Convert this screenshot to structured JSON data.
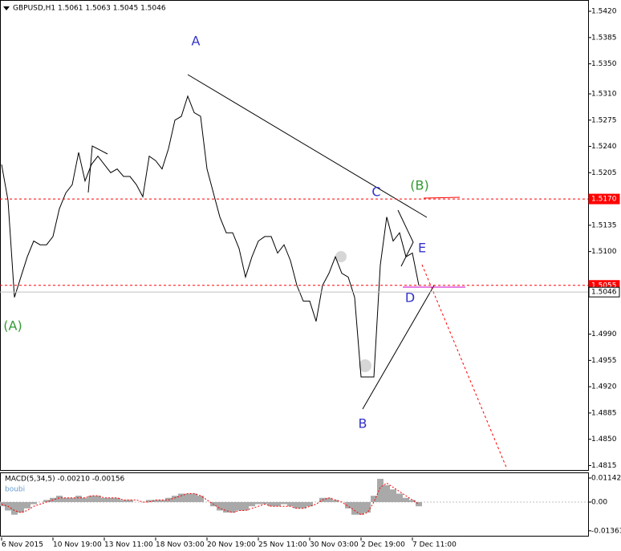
{
  "chart_data": [
    {
      "type": "line",
      "title": "GBPUSD,H1  1.5061 1.5063 1.5045 1.5046",
      "categories": [
        "6 Nov 2015",
        null,
        null,
        null,
        null,
        null,
        null,
        null,
        "10 Nov 19:00",
        null,
        null,
        null,
        null,
        null,
        null,
        null,
        "13 Nov 11:00",
        null,
        null,
        null,
        null,
        null,
        null,
        null,
        "18 Nov 03:00",
        null,
        null,
        null,
        null,
        null,
        null,
        null,
        "20 Nov 19:00",
        null,
        null,
        null,
        null,
        null,
        null,
        null,
        "25 Nov 11:00",
        null,
        null,
        null,
        null,
        null,
        null,
        null,
        "30 Nov 03:00",
        null,
        null,
        null,
        null,
        null,
        null,
        null,
        "2 Dec 19:00",
        null,
        null,
        null,
        null,
        null,
        null,
        null,
        "7 Dec 11:00",
        null,
        null,
        null,
        null,
        null,
        null,
        null,
        null,
        null,
        null,
        null,
        null,
        null,
        null,
        null,
        null,
        null,
        null,
        null,
        null,
        null,
        null,
        null,
        null,
        null,
        null,
        null
      ],
      "series": [
        {
          "name": "GBPUSD",
          "color": "#000000",
          "values": [
            1.5216,
            1.5168,
            1.5039,
            1.5066,
            1.5093,
            1.5114,
            1.5109,
            1.5109,
            1.512,
            1.5157,
            1.5178,
            1.5189,
            1.5232,
            1.5194,
            1.5216,
            1.5227,
            1.5216,
            1.5205,
            1.521,
            1.52,
            1.52,
            1.5189,
            1.5173,
            1.5227,
            1.5221,
            1.521,
            1.5237,
            1.5275,
            1.528,
            1.5307,
            1.5285,
            1.528,
            1.521,
            1.5178,
            1.5146,
            1.5125,
            1.5125,
            1.5104,
            1.5066,
            1.5093,
            1.5114,
            1.512,
            1.512,
            1.5098,
            1.5109,
            1.5088,
            1.5055,
            1.5034,
            1.5034,
            1.5007,
            1.5055,
            1.5071,
            1.5093,
            1.5071,
            1.5066,
            1.5039,
            1.4933,
            1.4933,
            1.4933,
            1.5082,
            1.5146,
            1.5114,
            1.5125,
            1.5093,
            1.5098,
            1.5055,
            null,
            null,
            null,
            null,
            null,
            null,
            null,
            null,
            null,
            null,
            null,
            null,
            null,
            null,
            null,
            null,
            null,
            null,
            null,
            null,
            null,
            null,
            null,
            null,
            null,
            null
          ]
        }
      ],
      "ylim": [
        1.4808,
        1.5435
      ],
      "yticks": [
        {
          "value": 1.542,
          "label": "1.5420"
        },
        {
          "value": 1.5385,
          "label": "1.5385"
        },
        {
          "value": 1.535,
          "label": "1.5350"
        },
        {
          "value": 1.531,
          "label": "1.5310"
        },
        {
          "value": 1.5275,
          "label": "1.5275"
        },
        {
          "value": 1.524,
          "label": "1.5240"
        },
        {
          "value": 1.5205,
          "label": "1.5205"
        },
        {
          "value": 1.5135,
          "label": "1.5135"
        },
        {
          "value": 1.51,
          "label": "1.5100"
        },
        {
          "value": 1.499,
          "label": "1.4990"
        },
        {
          "value": 1.4955,
          "label": "1.4955"
        },
        {
          "value": 1.492,
          "label": "1.4920"
        },
        {
          "value": 1.4885,
          "label": "1.4885"
        },
        {
          "value": 1.485,
          "label": "1.4850"
        },
        {
          "value": 1.4815,
          "label": "1.4815"
        }
      ],
      "levels": [
        {
          "value": 1.517,
          "label": "1.5170",
          "color": "#ff0000"
        },
        {
          "value": 1.5055,
          "label": "1.5055",
          "color": "#ff0000"
        },
        {
          "value": 1.5046,
          "label": "1.5046",
          "color": "#c0c0c0"
        }
      ],
      "annotations": [
        "A",
        "B",
        "C",
        "D",
        "E",
        "(A)",
        "(B)"
      ]
    },
    {
      "type": "macd",
      "title": "MACD(5,34,5) -0.00210 -0.00156",
      "subtitle": "boubi",
      "series": [
        {
          "name": "MACD",
          "color": "#a9a9a9",
          "values": [
            -0.002,
            -0.004,
            -0.006,
            -0.005,
            -0.003,
            -0.001,
            0,
            0.001,
            0.002,
            0.003,
            0.002,
            0.002,
            0.003,
            0.002,
            0.003,
            0.003,
            0.002,
            0.002,
            0.002,
            0.001,
            0.001,
            0,
            0,
            0.001,
            0.001,
            0.001,
            0.002,
            0.003,
            0.004,
            0.004,
            0.004,
            0.003,
            0,
            -0.002,
            -0.004,
            -0.005,
            -0.005,
            -0.004,
            -0.004,
            -0.002,
            -0.001,
            -0.001,
            -0.002,
            -0.002,
            -0.001,
            -0.002,
            -0.003,
            -0.003,
            -0.002,
            0,
            0.002,
            0.002,
            0.001,
            0,
            -0.003,
            -0.006,
            -0.006,
            -0.005,
            0.003,
            0.011,
            0.008,
            0.006,
            0.004,
            0.002,
            0.001,
            -0.002,
            null,
            null,
            null,
            null,
            null,
            null,
            null,
            null,
            null,
            null,
            null,
            null,
            null,
            null,
            null,
            null,
            null,
            null,
            null,
            null,
            null,
            null,
            null,
            null,
            null,
            null
          ]
        },
        {
          "name": "Signal",
          "color": "#ff0000",
          "values": [
            -0.001,
            -0.002,
            -0.004,
            -0.005,
            -0.004,
            -0.002,
            -0.001,
            0,
            0.001,
            0.002,
            0.002,
            0.002,
            0.002,
            0.002,
            0.003,
            0.003,
            0.002,
            0.002,
            0.002,
            0.001,
            0.001,
            0.001,
            0,
            0,
            0.001,
            0.001,
            0.001,
            0.002,
            0.003,
            0.004,
            0.004,
            0.003,
            0.001,
            -0.001,
            -0.003,
            -0.004,
            -0.005,
            -0.004,
            -0.004,
            -0.003,
            -0.002,
            -0.001,
            -0.002,
            -0.002,
            -0.002,
            -0.002,
            -0.003,
            -0.003,
            -0.002,
            -0.001,
            0.001,
            0.002,
            0.001,
            0,
            -0.002,
            -0.004,
            -0.006,
            -0.005,
            0,
            0.007,
            0.009,
            0.007,
            0.005,
            0.003,
            0.001,
            -0.001,
            null,
            null,
            null,
            null,
            null,
            null,
            null,
            null,
            null,
            null,
            null,
            null,
            null,
            null,
            null,
            null,
            null,
            null,
            null,
            null,
            null,
            null,
            null,
            null,
            null,
            null
          ]
        }
      ],
      "ylim": [
        -0.01675,
        0.0137
      ],
      "yticks": [
        0.01142,
        {
          "value": 0,
          "label": "0.00"
        },
        -0.01363
      ]
    }
  ]
}
